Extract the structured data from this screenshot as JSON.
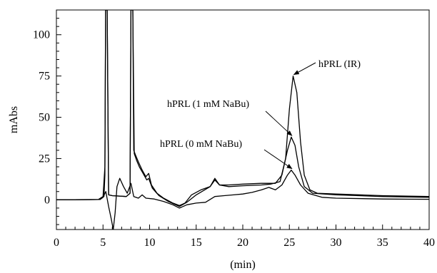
{
  "chart_data": {
    "type": "line",
    "title": "",
    "xlabel": "(min)",
    "ylabel": "mAbs",
    "xlim": [
      0,
      40
    ],
    "ylim": [
      -18,
      115
    ],
    "x_ticks": [
      0,
      5,
      10,
      15,
      20,
      25,
      30,
      35,
      40
    ],
    "y_ticks": [
      0,
      25,
      50,
      75,
      100
    ],
    "grid": false,
    "legend": "none",
    "line_color": "#000000",
    "series": [
      {
        "key": "ir",
        "points": [
          [
            0,
            0
          ],
          [
            4.5,
            0.2
          ],
          [
            5.0,
            2
          ],
          [
            5.2,
            20
          ],
          [
            5.28,
            115
          ],
          [
            5.45,
            115
          ],
          [
            5.6,
            3
          ],
          [
            6.0,
            2.5
          ],
          [
            7.5,
            2
          ],
          [
            7.9,
            4
          ],
          [
            8.0,
            115
          ],
          [
            8.2,
            115
          ],
          [
            8.3,
            30
          ],
          [
            8.5,
            27
          ],
          [
            8.8,
            23
          ],
          [
            9.2,
            18
          ],
          [
            9.6,
            14
          ],
          [
            9.9,
            16
          ],
          [
            10.2,
            9
          ],
          [
            10.8,
            4
          ],
          [
            11.5,
            1
          ],
          [
            12.5,
            -2
          ],
          [
            13.2,
            -3.5
          ],
          [
            13.8,
            -2
          ],
          [
            14.5,
            3
          ],
          [
            15.5,
            6
          ],
          [
            16.5,
            8
          ],
          [
            17.0,
            12
          ],
          [
            17.5,
            9
          ],
          [
            18.5,
            8
          ],
          [
            20,
            8.5
          ],
          [
            22,
            9
          ],
          [
            23.0,
            9.5
          ],
          [
            24.0,
            11
          ],
          [
            24.6,
            25
          ],
          [
            25.0,
            55
          ],
          [
            25.4,
            75
          ],
          [
            25.8,
            65
          ],
          [
            26.2,
            35
          ],
          [
            26.6,
            15
          ],
          [
            27.2,
            6
          ],
          [
            28,
            4
          ],
          [
            30,
            3.5
          ],
          [
            35,
            2.5
          ],
          [
            40,
            2
          ]
        ]
      },
      {
        "key": "nabu1",
        "points": [
          [
            0,
            0
          ],
          [
            4.6,
            0.2
          ],
          [
            5.1,
            2
          ],
          [
            5.2,
            15
          ],
          [
            5.28,
            115
          ],
          [
            5.45,
            115
          ],
          [
            5.6,
            3
          ],
          [
            6.0,
            2.5
          ],
          [
            7.5,
            2
          ],
          [
            7.9,
            4
          ],
          [
            8.0,
            115
          ],
          [
            8.2,
            115
          ],
          [
            8.35,
            28
          ],
          [
            8.6,
            24
          ],
          [
            8.9,
            20
          ],
          [
            9.3,
            16
          ],
          [
            9.7,
            12
          ],
          [
            9.9,
            13
          ],
          [
            10.3,
            7
          ],
          [
            11,
            2.5
          ],
          [
            12,
            -1
          ],
          [
            13.2,
            -4
          ],
          [
            14,
            -1.5
          ],
          [
            15,
            3
          ],
          [
            16.5,
            8
          ],
          [
            17.0,
            13
          ],
          [
            17.5,
            9
          ],
          [
            18.5,
            9
          ],
          [
            20,
            9.5
          ],
          [
            22,
            10
          ],
          [
            23.5,
            10
          ],
          [
            24.2,
            15
          ],
          [
            24.8,
            30
          ],
          [
            25.2,
            38
          ],
          [
            25.6,
            33
          ],
          [
            26.0,
            20
          ],
          [
            26.6,
            8
          ],
          [
            27.5,
            4
          ],
          [
            30,
            3
          ],
          [
            35,
            2
          ],
          [
            40,
            1.5
          ]
        ]
      },
      {
        "key": "nabu0",
        "points": [
          [
            0,
            0
          ],
          [
            4.7,
            0.2
          ],
          [
            5.0,
            1.5
          ],
          [
            5.3,
            5
          ],
          [
            5.6,
            -4
          ],
          [
            5.9,
            -12
          ],
          [
            6.1,
            -18
          ],
          [
            6.3,
            -8
          ],
          [
            6.5,
            8
          ],
          [
            6.8,
            13
          ],
          [
            7.2,
            8
          ],
          [
            7.6,
            4
          ],
          [
            8.0,
            10
          ],
          [
            8.3,
            2
          ],
          [
            8.8,
            1
          ],
          [
            9.2,
            3
          ],
          [
            9.6,
            1
          ],
          [
            10.5,
            0.5
          ],
          [
            11.5,
            -1
          ],
          [
            12.5,
            -3
          ],
          [
            13.2,
            -5
          ],
          [
            14,
            -3
          ],
          [
            15,
            -2
          ],
          [
            16,
            -1.5
          ],
          [
            17,
            2
          ],
          [
            18,
            2.5
          ],
          [
            19,
            3
          ],
          [
            20,
            3.5
          ],
          [
            21,
            4.5
          ],
          [
            22,
            6
          ],
          [
            22.8,
            7.5
          ],
          [
            23.5,
            6
          ],
          [
            24.2,
            9
          ],
          [
            24.8,
            15
          ],
          [
            25.2,
            18
          ],
          [
            25.6,
            15
          ],
          [
            26.2,
            9
          ],
          [
            27,
            4
          ],
          [
            28.5,
            1.5
          ],
          [
            30,
            1
          ],
          [
            35,
            0.5
          ],
          [
            40,
            0.3
          ]
        ]
      }
    ],
    "annotations": [
      {
        "text": "hPRL (IR)",
        "target": [
          25.4,
          75
        ]
      },
      {
        "text": "hPRL (1 mM NaBu)",
        "target": [
          25.2,
          38
        ]
      },
      {
        "text": "hPRL (0 mM NaBu)",
        "target": [
          25.2,
          18
        ]
      }
    ]
  }
}
